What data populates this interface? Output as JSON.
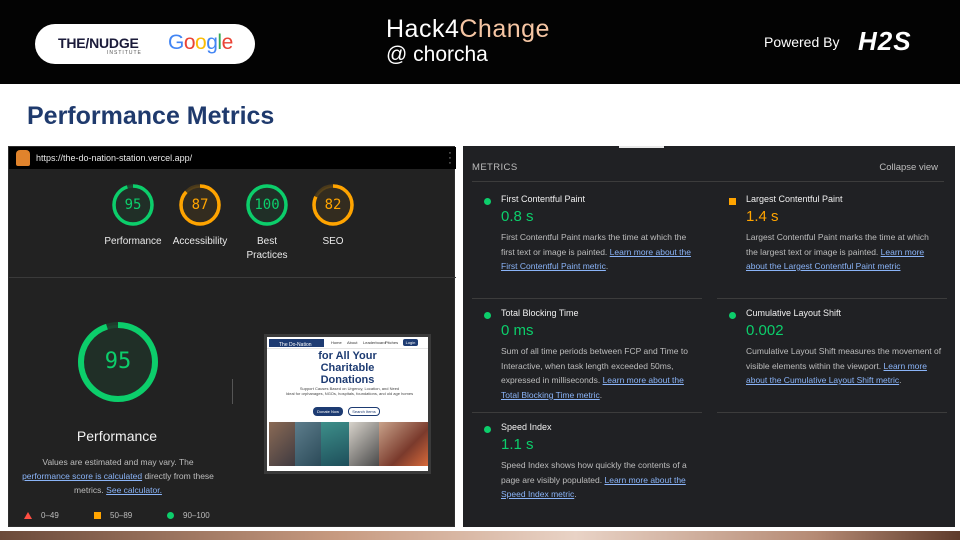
{
  "header": {
    "nudge_logo": "THE/NUDGE",
    "nudge_sub": "INSTITUTE",
    "google_logo": "Google",
    "event_line1_a": "Hack4",
    "event_line1_b": "Change",
    "event_line2": "@ chorcha",
    "powered_by": "Powered By",
    "h2s_logo": "H2S"
  },
  "slide_title": "Performance Metrics",
  "lighthouse": {
    "url": "https://the-do-nation-station.vercel.app/",
    "scores": [
      {
        "label": "Performance",
        "value": "95",
        "score": 95,
        "color": "#0cce6b"
      },
      {
        "label": "Accessibility",
        "value": "87",
        "score": 87,
        "color": "#ffa400"
      },
      {
        "label": "Best Practices",
        "value": "100",
        "score": 100,
        "color": "#0cce6b"
      },
      {
        "label": "SEO",
        "value": "82",
        "score": 82,
        "color": "#ffa400"
      }
    ],
    "main_score": {
      "value": "95",
      "score": 95,
      "label": "Performance"
    },
    "note_pre": "Values are estimated and may vary. The ",
    "note_link1": "performance score is calculated",
    "note_mid": " directly from these metrics. ",
    "note_link2": "See calculator.",
    "legend": [
      {
        "range": "0–49",
        "shape": "triangle",
        "color": "#ff4e42"
      },
      {
        "range": "50–89",
        "shape": "square",
        "color": "#ffa400"
      },
      {
        "range": "90–100",
        "shape": "circle",
        "color": "#0cce6b"
      }
    ],
    "thumbnail": {
      "logo_text": "The Do-Nation Station",
      "menu": [
        "Home",
        "About",
        "Leaderboard",
        "Pitches"
      ],
      "login": "Login",
      "heading_line1": "for All Your",
      "heading_line2": "Charitable",
      "heading_line3": "Donations",
      "subtext_line1": "Support Causes Based on Urgency, Location, and Need",
      "subtext_line2": "Ideal for orphanages, NGOs, hospitals, foundations, and old age homes",
      "button1": "Donate Now",
      "button2": "Search Items"
    }
  },
  "metrics": {
    "header": "METRICS",
    "collapse": "Collapse view",
    "items": [
      {
        "title": "First Contentful Paint",
        "value": "0.8 s",
        "status": "good",
        "color": "#0cce6b",
        "desc": "First Contentful Paint marks the time at which the first text or image is painted. ",
        "link": "Learn more about the First Contentful Paint metric",
        "tail": "."
      },
      {
        "title": "Largest Contentful Paint",
        "value": "1.4 s",
        "status": "average",
        "color": "#ffa400",
        "desc": "Largest Contentful Paint marks the time at which the largest text or image is painted. ",
        "link": "Learn more about the Largest Contentful Paint metric",
        "tail": ""
      },
      {
        "title": "Total Blocking Time",
        "value": "0 ms",
        "status": "good",
        "color": "#0cce6b",
        "desc": "Sum of all time periods between FCP and Time to Interactive, when task length exceeded 50ms, expressed in milliseconds. ",
        "link": "Learn more about the Total Blocking Time metric",
        "tail": "."
      },
      {
        "title": "Cumulative Layout Shift",
        "value": "0.002",
        "status": "good",
        "color": "#0cce6b",
        "desc": "Cumulative Layout Shift measures the movement of visible elements within the viewport. ",
        "link": "Learn more about the Cumulative Layout Shift metric",
        "tail": "."
      },
      {
        "title": "Speed Index",
        "value": "1.1 s",
        "status": "good",
        "color": "#0cce6b",
        "desc": "Speed Index shows how quickly the contents of a page are visibly populated. ",
        "link": "Learn more about the Speed Index metric",
        "tail": "."
      }
    ]
  }
}
